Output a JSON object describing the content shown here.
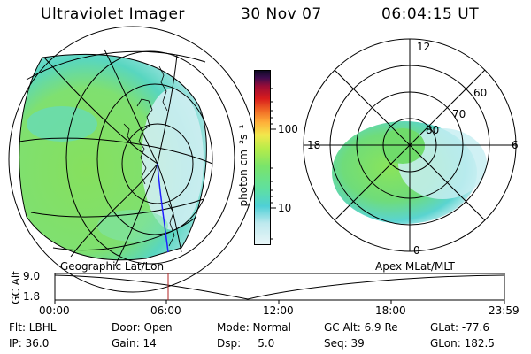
{
  "header": {
    "instrument": "Ultraviolet Imager",
    "date": "30 Nov 07",
    "time": "06:04:15 UT"
  },
  "colorbar": {
    "ticks": [
      "100",
      "10"
    ],
    "unit_label": "photon cm⁻²s⁻¹"
  },
  "polar_plot": {
    "labels": [
      "12",
      "60",
      "70",
      "80",
      "18",
      "6",
      "0"
    ]
  },
  "timeline": {
    "left_title": "Geographic Lat/Lon",
    "right_title": "Apex MLat/MLT",
    "axis_label": "GC Alt",
    "y_ticks": [
      "9.0",
      "1.8"
    ],
    "x_ticks": [
      "00:00",
      "06:00",
      "12:00",
      "18:00",
      "23:59"
    ]
  },
  "status": {
    "row1": {
      "flt": "Flt: LBHL",
      "door": "Door: Open",
      "mode": "Mode: Normal",
      "gcalt": "GC Alt: 6.9 Re",
      "glat": "GLat: -77.6"
    },
    "row2": {
      "ip": "IP: 36.0",
      "gain": "Gain: 14",
      "dsp": "Dsp:     5.0",
      "seq": "Seq: 39",
      "glon": "GLon: 182.5"
    }
  },
  "colors": {
    "line_blue": "#2020ff",
    "marker_red": "#b22222"
  }
}
